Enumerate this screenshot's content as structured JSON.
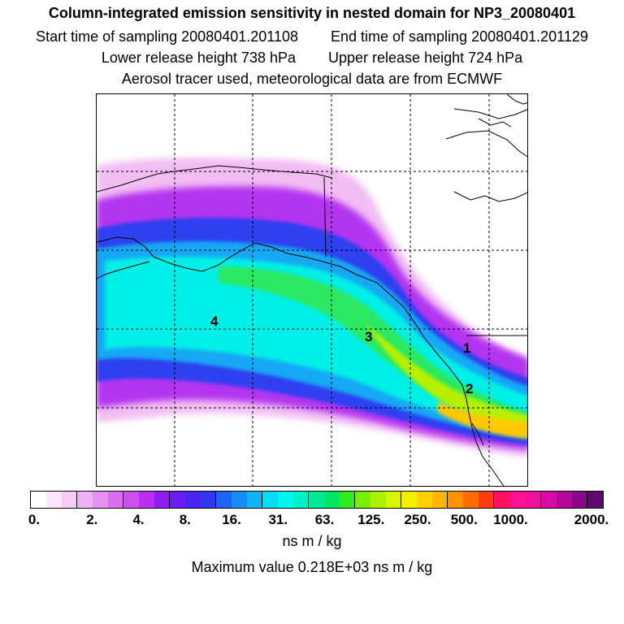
{
  "header": {
    "title": "Column-integrated emission sensitivity in nested domain for NP3_20080401",
    "start_time": "Start time of sampling 20080401.201108",
    "end_time": "End time of sampling 20080401.201129",
    "lower_release": "Lower release height  738 hPa",
    "upper_release": "Upper release height  724 hPa",
    "tracer_info": "Aerosol tracer used, meteorological data are from ECMWF"
  },
  "map": {
    "labels": [
      "4",
      "3",
      "1",
      "2"
    ]
  },
  "colorbar": {
    "colors": [
      "#ffffff",
      "#fbe6fb",
      "#f6ccf6",
      "#f0b0f2",
      "#e591f0",
      "#d970ee",
      "#cc4fee",
      "#bb2df0",
      "#8f1cf1",
      "#6a1cf2",
      "#4a23f0",
      "#3038ef",
      "#1f63f2",
      "#168cf4",
      "#0eb4f5",
      "#06dcf5",
      "#00f7f0",
      "#00f0c8",
      "#00e89a",
      "#00e564",
      "#30eb1e",
      "#76f000",
      "#abf200",
      "#d9f500",
      "#f6ef00",
      "#ffd200",
      "#ffb400",
      "#ff9200",
      "#ff6c00",
      "#ff3c10",
      "#ff1060",
      "#ff1095",
      "#f0109e",
      "#d80ca2",
      "#b5089a",
      "#8c0888",
      "#600870"
    ],
    "tick_labels": [
      "0.",
      "2.",
      "4.",
      "8.",
      "16.",
      "31.",
      "63.",
      "125.",
      "250.",
      "500.",
      "1000.",
      "2000."
    ],
    "units": "ns m / kg",
    "max_value": "Maximum value  0.218E+03 ns m / kg"
  }
}
